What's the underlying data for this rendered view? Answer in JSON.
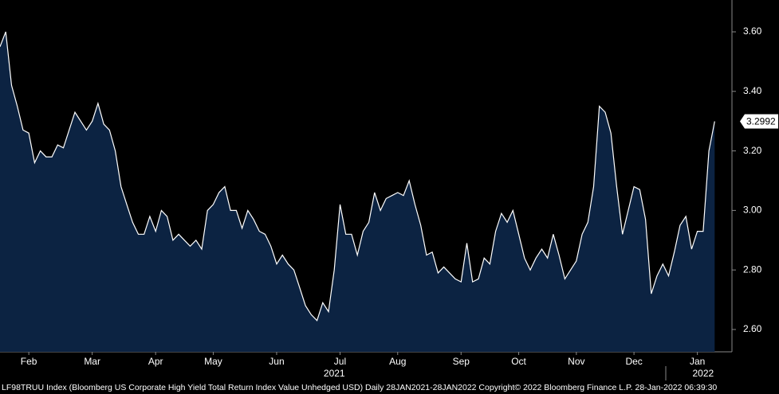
{
  "chart_data": {
    "type": "area",
    "values": [
      3.55,
      3.6,
      3.42,
      3.35,
      3.27,
      3.26,
      3.16,
      3.2,
      3.18,
      3.18,
      3.22,
      3.21,
      3.27,
      3.33,
      3.3,
      3.27,
      3.3,
      3.36,
      3.29,
      3.27,
      3.2,
      3.08,
      3.02,
      2.96,
      2.92,
      2.92,
      2.98,
      2.93,
      3.0,
      2.98,
      2.9,
      2.92,
      2.9,
      2.88,
      2.9,
      2.87,
      3.0,
      3.02,
      3.06,
      3.08,
      3.0,
      3.0,
      2.94,
      3.0,
      2.97,
      2.93,
      2.92,
      2.88,
      2.82,
      2.85,
      2.82,
      2.8,
      2.74,
      2.68,
      2.65,
      2.63,
      2.69,
      2.66,
      2.8,
      3.02,
      2.92,
      2.92,
      2.85,
      2.93,
      2.96,
      3.06,
      3.0,
      3.04,
      3.05,
      3.06,
      3.05,
      3.1,
      3.02,
      2.95,
      2.85,
      2.86,
      2.79,
      2.81,
      2.79,
      2.77,
      2.76,
      2.89,
      2.76,
      2.77,
      2.84,
      2.82,
      2.93,
      2.99,
      2.96,
      3.0,
      2.92,
      2.84,
      2.8,
      2.84,
      2.87,
      2.84,
      2.92,
      2.85,
      2.77,
      2.8,
      2.83,
      2.92,
      2.96,
      3.08,
      3.35,
      3.33,
      3.26,
      3.08,
      2.92,
      3.0,
      3.08,
      3.07,
      2.97,
      2.72,
      2.78,
      2.82,
      2.78,
      2.86,
      2.95,
      2.98,
      2.87,
      2.93,
      2.93,
      3.2,
      3.2992
    ],
    "color": "#ffffff",
    "fill": "#0c2342",
    "xlim": [
      0,
      127
    ],
    "xticks": [
      {
        "value": 5,
        "label": "Feb"
      },
      {
        "value": 16,
        "label": "Mar"
      },
      {
        "value": 27,
        "label": "Apr"
      },
      {
        "value": 37,
        "label": "May"
      },
      {
        "value": 48,
        "label": "Jun"
      },
      {
        "value": 59,
        "label": "Jul"
      },
      {
        "value": 69,
        "label": "Aug"
      },
      {
        "value": 80,
        "label": "Sep"
      },
      {
        "value": 90,
        "label": "Oct"
      },
      {
        "value": 100,
        "label": "Nov"
      },
      {
        "value": 110,
        "label": "Dec"
      },
      {
        "value": 121,
        "label": "Jan"
      }
    ],
    "years": [
      {
        "value": 58,
        "label": "2021"
      },
      {
        "value": 122,
        "label": "2022"
      }
    ],
    "ylim": [
      2.525,
      3.707
    ],
    "yticks": [
      {
        "value": 2.6,
        "label": "2.60"
      },
      {
        "value": 2.8,
        "label": "2.80"
      },
      {
        "value": 3.0,
        "label": "3.00"
      },
      {
        "value": 3.2,
        "label": "3.20"
      },
      {
        "value": 3.4,
        "label": "3.40"
      },
      {
        "value": 3.6,
        "label": "3.60"
      }
    ],
    "footer": "LF98TRUU Index (Bloomberg US Corporate High Yield Total Return Index Value Unhedged USD)  Daily 28JAN2021-28JAN2022 Copyright© 2022 Bloomberg Finance L.P. 28-Jan-2022 06:39:30"
  }
}
